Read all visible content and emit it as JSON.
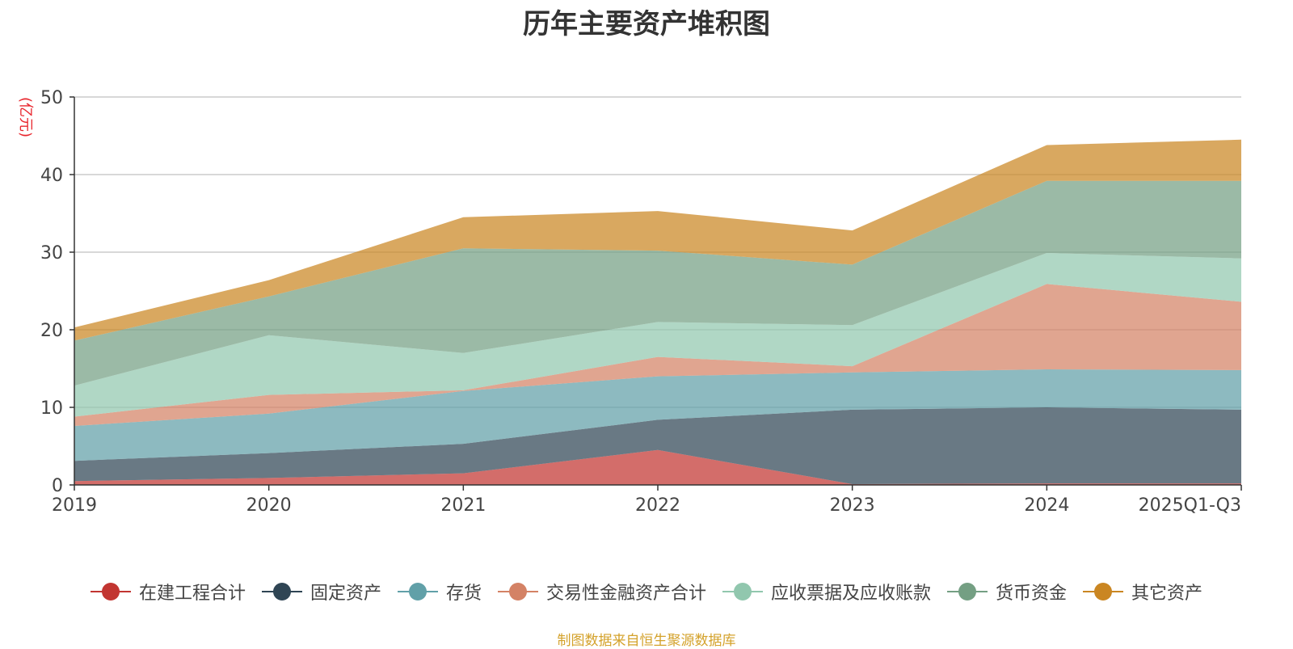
{
  "chart_data": {
    "type": "area",
    "stacked": true,
    "title": "历年主要资产堆积图",
    "unit_label": "(亿元)",
    "categories": [
      "2019",
      "2020",
      "2021",
      "2022",
      "2023",
      "2024",
      "2025Q1-Q3"
    ],
    "ylim": [
      0,
      50
    ],
    "yticks": [
      0,
      10,
      20,
      30,
      40,
      50
    ],
    "grid": true,
    "legend_position": "bottom",
    "series": [
      {
        "name": "在建工程合计",
        "color": "#c23531",
        "values": [
          0.5,
          0.9,
          1.5,
          4.5,
          0.1,
          0.2,
          0.2
        ]
      },
      {
        "name": "固定资产",
        "color": "#2f4554",
        "values": [
          2.6,
          3.2,
          3.8,
          3.9,
          9.6,
          9.8,
          9.5
        ]
      },
      {
        "name": "存货",
        "color": "#61a0a8",
        "values": [
          4.5,
          5.1,
          6.8,
          5.6,
          4.8,
          4.9,
          5.1
        ]
      },
      {
        "name": "交易性金融资产合计",
        "color": "#d48265",
        "values": [
          1.2,
          2.4,
          0.1,
          2.5,
          0.8,
          11.0,
          8.8
        ]
      },
      {
        "name": "应收票据及应收账款",
        "color": "#91c7ae",
        "values": [
          4.0,
          7.7,
          4.8,
          4.5,
          5.3,
          4.0,
          5.6
        ]
      },
      {
        "name": "货币资金",
        "color": "#749f83",
        "values": [
          5.8,
          5.0,
          13.5,
          9.2,
          7.8,
          9.3,
          10.0
        ]
      },
      {
        "name": "其它资产",
        "color": "#ca8622",
        "values": [
          1.7,
          2.1,
          4.0,
          5.1,
          4.4,
          4.6,
          5.3
        ]
      }
    ]
  },
  "source_note": "制图数据来自恒生聚源数据库"
}
